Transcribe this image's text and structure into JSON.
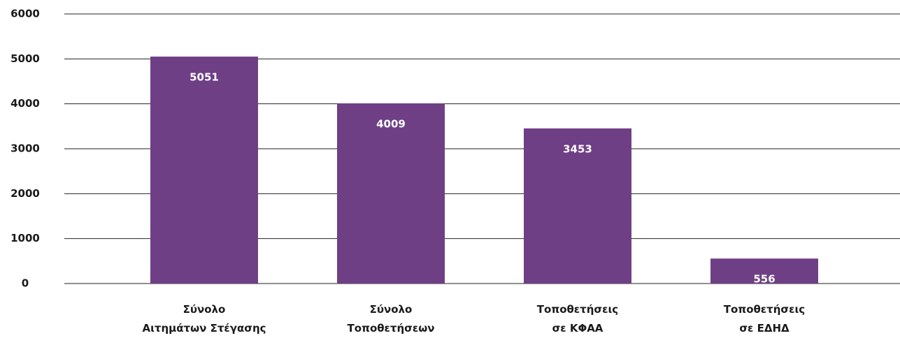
{
  "chart_data": {
    "type": "bar",
    "categories": [
      [
        "Σύνολο",
        "Αιτημάτων Στέγασης"
      ],
      [
        "Σύνολο",
        "Τοποθετήσεων"
      ],
      [
        "Τοποθετήσεις",
        "σε ΚΦΑΑ"
      ],
      [
        "Τοποθετήσεις",
        "σε ΕΔΗΔ"
      ]
    ],
    "values": [
      5051,
      4009,
      3453,
      556
    ],
    "color": "#6f3f85",
    "ylim": [
      0,
      6000
    ],
    "yticks": [
      0,
      1000,
      2000,
      3000,
      4000,
      5000,
      6000
    ],
    "grid": true
  }
}
